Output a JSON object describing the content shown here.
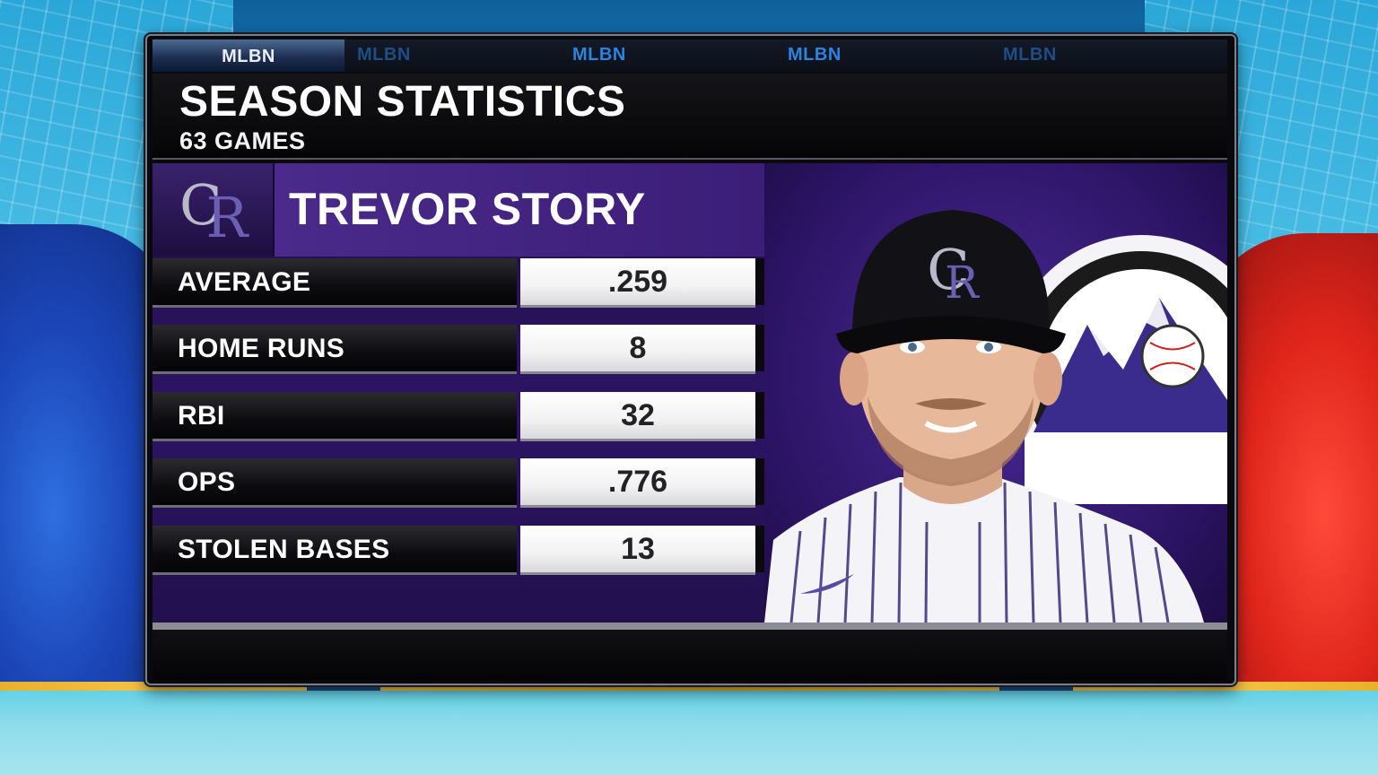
{
  "ticker": {
    "items": [
      "MLBN",
      "MLBN",
      "MLBN",
      "MLBN",
      "MLBN"
    ]
  },
  "header": {
    "title": "SEASON STATISTICS",
    "subtitle": "63 GAMES"
  },
  "player": {
    "name": "TREVOR STORY",
    "team_logo_letters": "CR"
  },
  "stats": [
    {
      "label": "AVERAGE",
      "value": ".259"
    },
    {
      "label": "HOME RUNS",
      "value": "8"
    },
    {
      "label": "RBI",
      "value": "32"
    },
    {
      "label": "OPS",
      "value": ".776"
    },
    {
      "label": "STOLEN BASES",
      "value": "13"
    }
  ],
  "colors": {
    "team_purple": "#33006F",
    "accent_blue": "#2a84e0",
    "accent_red": "#e0261c"
  }
}
